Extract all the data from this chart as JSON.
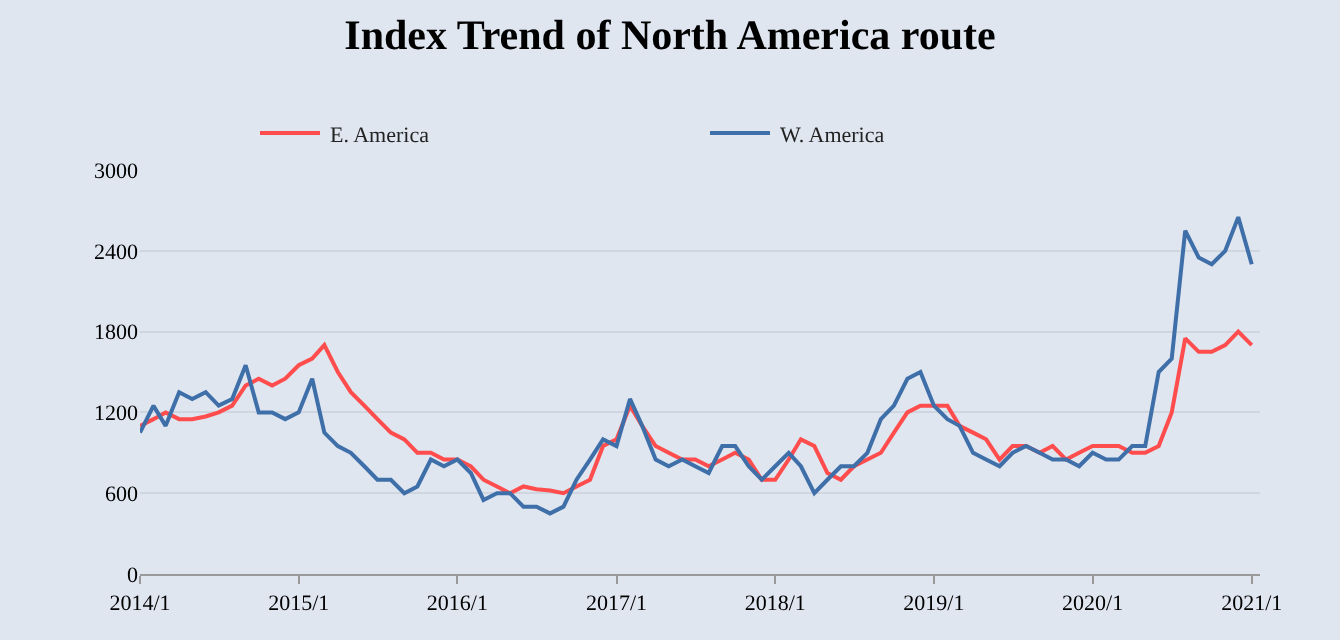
{
  "chart_data": {
    "type": "line",
    "title": "Index Trend of North America route",
    "x": [
      "2014-01",
      "2014-02",
      "2014-03",
      "2014-04",
      "2014-05",
      "2014-06",
      "2014-07",
      "2014-08",
      "2014-09",
      "2014-10",
      "2014-11",
      "2014-12",
      "2015-01",
      "2015-02",
      "2015-03",
      "2015-04",
      "2015-05",
      "2015-06",
      "2015-07",
      "2015-08",
      "2015-09",
      "2015-10",
      "2015-11",
      "2015-12",
      "2016-01",
      "2016-02",
      "2016-03",
      "2016-04",
      "2016-05",
      "2016-06",
      "2016-07",
      "2016-08",
      "2016-09",
      "2016-10",
      "2016-11",
      "2016-12",
      "2017-01",
      "2017-02",
      "2017-03",
      "2017-04",
      "2017-05",
      "2017-06",
      "2017-07",
      "2017-08",
      "2017-09",
      "2017-10",
      "2017-11",
      "2017-12",
      "2018-01",
      "2018-02",
      "2018-03",
      "2018-04",
      "2018-05",
      "2018-06",
      "2018-07",
      "2018-08",
      "2018-09",
      "2018-10",
      "2018-11",
      "2018-12",
      "2019-01",
      "2019-02",
      "2019-03",
      "2019-04",
      "2019-05",
      "2019-06",
      "2019-07",
      "2019-08",
      "2019-09",
      "2019-10",
      "2019-11",
      "2019-12",
      "2020-01",
      "2020-02",
      "2020-03",
      "2020-04",
      "2020-05",
      "2020-06",
      "2020-07",
      "2020-08",
      "2020-09",
      "2020-10",
      "2020-11",
      "2020-12",
      "2021-01"
    ],
    "series": [
      {
        "name": "E. America",
        "color": "#ff4d4d",
        "values": [
          1100,
          1150,
          1200,
          1150,
          1150,
          1170,
          1200,
          1250,
          1400,
          1450,
          1400,
          1450,
          1550,
          1600,
          1700,
          1500,
          1350,
          1250,
          1150,
          1050,
          1000,
          900,
          900,
          850,
          850,
          800,
          700,
          650,
          600,
          650,
          630,
          620,
          600,
          650,
          700,
          950,
          1000,
          1250,
          1100,
          950,
          900,
          850,
          850,
          800,
          850,
          900,
          850,
          700,
          700,
          850,
          1000,
          950,
          750,
          700,
          800,
          850,
          900,
          1050,
          1200,
          1250,
          1250,
          1250,
          1100,
          1050,
          1000,
          850,
          950,
          950,
          900,
          950,
          850,
          900,
          950,
          950,
          950,
          900,
          900,
          950,
          1200,
          1750,
          1650,
          1650,
          1700,
          1800,
          1700
        ]
      },
      {
        "name": "W. America",
        "color": "#3f6fa8",
        "values": [
          1050,
          1250,
          1100,
          1350,
          1300,
          1350,
          1250,
          1300,
          1550,
          1200,
          1200,
          1150,
          1200,
          1450,
          1050,
          950,
          900,
          800,
          700,
          700,
          600,
          650,
          850,
          800,
          850,
          750,
          550,
          600,
          600,
          500,
          500,
          450,
          500,
          700,
          850,
          1000,
          950,
          1300,
          1100,
          850,
          800,
          850,
          800,
          750,
          950,
          950,
          800,
          700,
          800,
          900,
          800,
          600,
          700,
          800,
          800,
          900,
          1150,
          1250,
          1450,
          1500,
          1250,
          1150,
          1100,
          900,
          850,
          800,
          900,
          950,
          900,
          850,
          850,
          800,
          900,
          850,
          850,
          950,
          950,
          1500,
          1600,
          2550,
          2350,
          2300,
          2400,
          2650,
          2300
        ]
      }
    ],
    "xlim": [
      "2014-01-01",
      "2021-01-20"
    ],
    "xticks": [
      {
        "value": "2014-01-01",
        "label": "2014/1"
      },
      {
        "value": "2015-01-01",
        "label": "2015/1"
      },
      {
        "value": "2016-01-01",
        "label": "2016/1"
      },
      {
        "value": "2017-01-01",
        "label": "2017/1"
      },
      {
        "value": "2018-01-01",
        "label": "2018/1"
      },
      {
        "value": "2019-01-01",
        "label": "2019/1"
      },
      {
        "value": "2020-01-01",
        "label": "2020/1"
      },
      {
        "value": "2021-01-01",
        "label": "2021/1"
      }
    ],
    "ylim": [
      0,
      3000
    ],
    "yticks": [
      0,
      600,
      1200,
      1800,
      2400,
      3000
    ],
    "grid": "y",
    "legend": "top",
    "marker": "none",
    "line_style": "solid"
  }
}
